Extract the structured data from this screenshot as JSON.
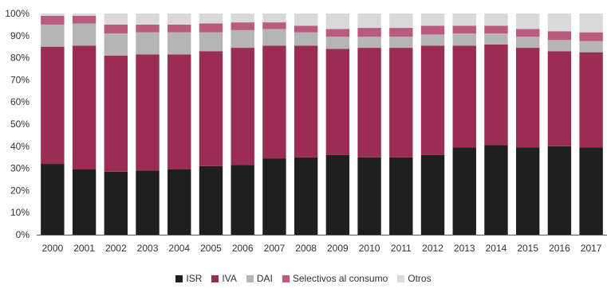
{
  "chart_data": {
    "type": "bar",
    "stacked": true,
    "categories": [
      "2000",
      "2001",
      "2002",
      "2003",
      "2004",
      "2005",
      "2006",
      "2007",
      "2008",
      "2009",
      "2010",
      "2011",
      "2012",
      "2013",
      "2014",
      "2015",
      "2016",
      "2017"
    ],
    "y_ticks": [
      "0%",
      "10%",
      "20%",
      "30%",
      "40%",
      "50%",
      "60%",
      "70%",
      "80%",
      "90%",
      "100%"
    ],
    "ylim": [
      0,
      100
    ],
    "y_unit": "%",
    "grid": false,
    "legend_position": "bottom",
    "series": [
      {
        "name": "ISR",
        "color": "#1f1f1f",
        "values": [
          32,
          29.5,
          28.5,
          29,
          29.5,
          31,
          31.5,
          34.5,
          35,
          36,
          35,
          35,
          36,
          39.5,
          40.5,
          39.5,
          40,
          39.5
        ]
      },
      {
        "name": "IVA",
        "color": "#9b2d55",
        "values": [
          53,
          56,
          52.5,
          52.5,
          52,
          52,
          53,
          51,
          50.5,
          48,
          49.5,
          49.5,
          49.5,
          46,
          45.5,
          45,
          43,
          43
        ]
      },
      {
        "name": "DAI",
        "color": "#b5b5b5",
        "values": [
          10,
          10,
          10,
          10,
          10,
          8.5,
          8,
          7.5,
          6,
          5.5,
          5,
          5,
          5,
          5.5,
          5,
          5,
          5,
          5
        ]
      },
      {
        "name": "Selectivos al consumo",
        "color": "#b95a7f",
        "values": [
          4,
          3.5,
          4,
          3.5,
          3.5,
          4,
          3.5,
          3,
          3,
          3.5,
          4,
          4,
          4,
          3.5,
          3.5,
          3.5,
          4,
          4
        ]
      },
      {
        "name": "Otros",
        "color": "#d9d9d9",
        "values": [
          1,
          1,
          5,
          5,
          5,
          4.5,
          4,
          4,
          5.5,
          7,
          6.5,
          6.5,
          5.5,
          5.5,
          5.5,
          7,
          8,
          8.5
        ]
      }
    ]
  }
}
